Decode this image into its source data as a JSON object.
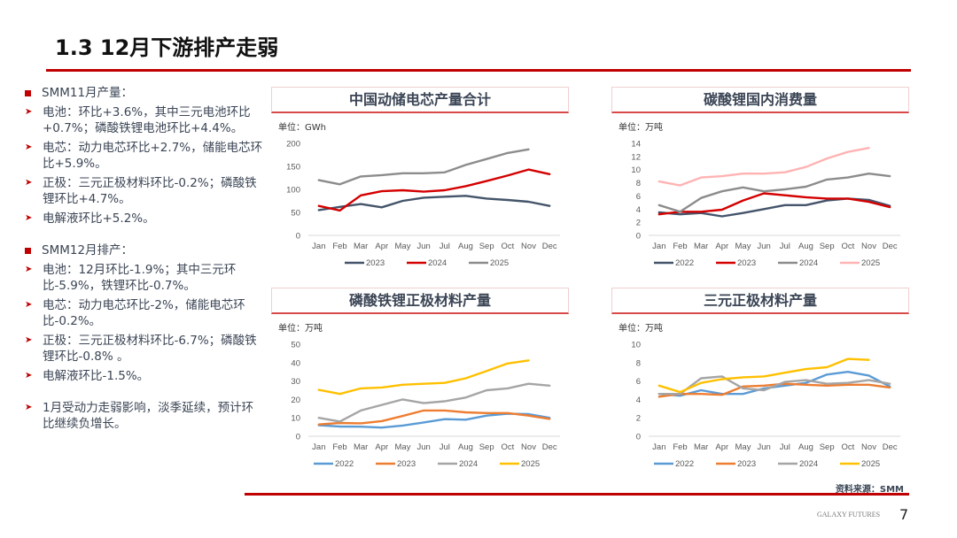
{
  "page": {
    "title": "1.3 12月下游排产走弱",
    "source": "资料来源：SMM",
    "brand": "GALAXY FUTURES",
    "page_number": "7"
  },
  "left_panel": {
    "section1": {
      "heading": "SMM11月产量：",
      "bullets": [
        "电池：环比+3.6%，其中三元电池环比+0.7%；磷酸铁锂电池环比+4.4%。",
        "电芯：动力电芯环比+2.7%，储能电芯环比+5.9%。",
        "正极：三元正极材料环比-0.2%；磷酸铁锂环比+4.7%。",
        "电解液环比+5.2%。"
      ]
    },
    "section2": {
      "heading": "SMM12月排产：",
      "bullets": [
        "电池：12月环比-1.9%；其中三元环比-5.9%，铁锂环比-0.7%。",
        "电芯：动力电芯环比-2%，储能电芯环比-0.2%。",
        "正极：三元正极材料环比-6.7%；磷酸铁锂环比-0.8% 。",
        "电解液环比-1.5%。"
      ]
    },
    "outlook": "1月受动力走弱影响，淡季延续，预计环比继续负增长。"
  },
  "chart_data": [
    {
      "type": "line",
      "title": "中国动储电芯产量合计",
      "unit_label": "单位：GWh",
      "categories": [
        "Jan",
        "Feb",
        "Mar",
        "Apr",
        "May",
        "Jun",
        "Jul",
        "Aug",
        "Sep",
        "Oct",
        "Nov",
        "Dec"
      ],
      "ylim": [
        0,
        200
      ],
      "yticks": [
        0,
        50,
        100,
        150,
        200
      ],
      "grid": false,
      "legend": "bottom",
      "series": [
        {
          "name": "2023",
          "color": "#44546a",
          "values": [
            55,
            62,
            68,
            61,
            75,
            82,
            84,
            86,
            80,
            77,
            73,
            64
          ]
        },
        {
          "name": "2024",
          "color": "#d40000",
          "values": [
            64,
            54,
            87,
            96,
            98,
            95,
            98,
            107,
            118,
            130,
            143,
            133
          ]
        },
        {
          "name": "2025",
          "color": "#8c8c8c",
          "values": [
            120,
            111,
            128,
            131,
            135,
            135,
            137,
            153,
            166,
            179,
            187,
            null
          ]
        }
      ]
    },
    {
      "type": "line",
      "title": "碳酸锂国内消费量",
      "unit_label": "单位：万吨",
      "categories": [
        "Jan",
        "Feb",
        "Mar",
        "Apr",
        "May",
        "Jun",
        "Jul",
        "Aug",
        "Sep",
        "Oct",
        "Nov",
        "Dec"
      ],
      "ylim": [
        0,
        14
      ],
      "yticks": [
        0,
        2,
        4,
        6,
        8,
        10,
        12,
        14
      ],
      "grid": false,
      "legend": "bottom",
      "series": [
        {
          "name": "2022",
          "color": "#44546a",
          "values": [
            3.5,
            3.2,
            3.4,
            2.9,
            3.4,
            4.0,
            4.6,
            4.6,
            5.3,
            5.6,
            5.4,
            4.5
          ]
        },
        {
          "name": "2023",
          "color": "#d40000",
          "values": [
            3.2,
            3.6,
            3.6,
            3.9,
            5.3,
            6.4,
            6.1,
            5.8,
            5.6,
            5.6,
            5.1,
            4.3
          ]
        },
        {
          "name": "2024",
          "color": "#8c8c8c",
          "values": [
            4.6,
            3.6,
            5.7,
            6.7,
            7.3,
            6.7,
            7.0,
            7.4,
            8.5,
            8.8,
            9.4,
            9.0
          ]
        },
        {
          "name": "2025",
          "color": "#ffb3b3",
          "values": [
            8.2,
            7.6,
            8.8,
            9.0,
            9.4,
            9.4,
            9.6,
            10.4,
            11.7,
            12.7,
            13.3,
            null
          ]
        }
      ]
    },
    {
      "type": "line",
      "title": "磷酸铁锂正极材料产量",
      "unit_label": "单位：万吨",
      "categories": [
        "Jan",
        "Feb",
        "Mar",
        "Apr",
        "May",
        "Jun",
        "Jul",
        "Aug",
        "Sep",
        "Oct",
        "Nov",
        "Dec"
      ],
      "ylim": [
        0,
        50
      ],
      "yticks": [
        0,
        10,
        20,
        30,
        40,
        50
      ],
      "grid": false,
      "legend": "bottom",
      "series": [
        {
          "name": "2022",
          "color": "#5b9bd5",
          "values": [
            6.0,
            5.3,
            5.2,
            4.7,
            5.8,
            7.5,
            9.3,
            9.0,
            11.2,
            12.2,
            12.0,
            10.0
          ]
        },
        {
          "name": "2023",
          "color": "#ed7d31",
          "values": [
            6.4,
            7.2,
            7.0,
            8.2,
            11.0,
            14.0,
            14.0,
            13.0,
            12.6,
            12.6,
            11.2,
            9.4
          ]
        },
        {
          "name": "2024",
          "color": "#a5a5a5",
          "values": [
            10.0,
            8.0,
            14.0,
            17.0,
            20.0,
            18.0,
            19.0,
            21.0,
            25.0,
            26.0,
            28.5,
            27.5
          ]
        },
        {
          "name": "2025",
          "color": "#ffc000",
          "values": [
            25.2,
            23.0,
            26.0,
            26.5,
            28.0,
            28.5,
            29.0,
            31.5,
            35.5,
            39.5,
            41.2,
            null
          ]
        }
      ]
    },
    {
      "type": "line",
      "title": "三元正极材料产量",
      "unit_label": "单位：万吨",
      "categories": [
        "Jan",
        "Feb",
        "Mar",
        "Apr",
        "May",
        "Jun",
        "Jul",
        "Aug",
        "Sep",
        "Oct",
        "Nov",
        "Dec"
      ],
      "ylim": [
        0,
        10
      ],
      "yticks": [
        0,
        2,
        4,
        6,
        8,
        10
      ],
      "grid": false,
      "legend": "bottom",
      "series": [
        {
          "name": "2022",
          "color": "#5b9bd5",
          "values": [
            4.6,
            4.4,
            5.0,
            4.6,
            4.6,
            5.2,
            5.5,
            5.8,
            6.7,
            7.0,
            6.6,
            5.4
          ]
        },
        {
          "name": "2023",
          "color": "#ed7d31",
          "values": [
            4.3,
            4.6,
            4.6,
            4.5,
            5.4,
            5.5,
            5.7,
            5.6,
            5.5,
            5.6,
            5.6,
            5.3
          ]
        },
        {
          "name": "2024",
          "color": "#a5a5a5",
          "values": [
            4.6,
            4.6,
            6.3,
            6.5,
            5.2,
            5.0,
            5.9,
            6.1,
            5.7,
            5.8,
            6.1,
            5.7
          ]
        },
        {
          "name": "2025",
          "color": "#ffc000",
          "values": [
            5.5,
            4.8,
            5.8,
            6.2,
            6.4,
            6.5,
            6.9,
            7.3,
            7.5,
            8.4,
            8.3,
            null
          ]
        }
      ]
    }
  ]
}
